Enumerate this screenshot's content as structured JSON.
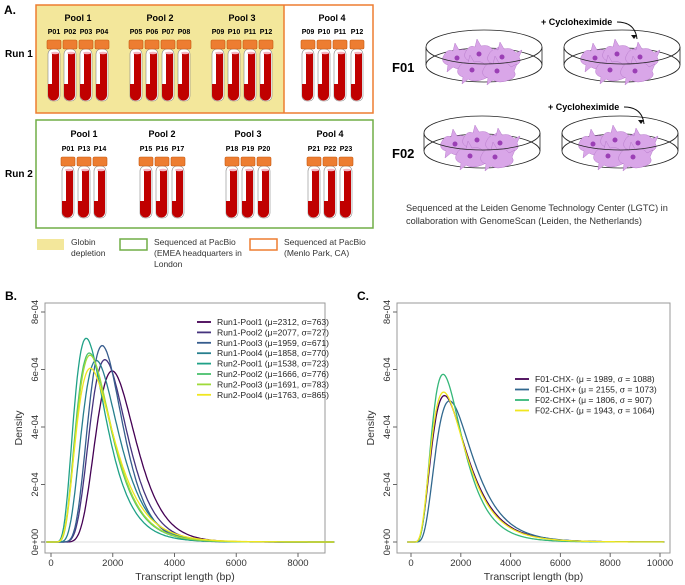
{
  "panel_a": {
    "label": "A.",
    "run1": {
      "label": "Run 1",
      "pools": [
        {
          "label": "Pool 1",
          "tubes": [
            "P01",
            "P02",
            "P03",
            "P04"
          ]
        },
        {
          "label": "Pool 2",
          "tubes": [
            "P05",
            "P06",
            "P07",
            "P08"
          ]
        },
        {
          "label": "Pool 3",
          "tubes": [
            "P09",
            "P10",
            "P11",
            "P12"
          ]
        },
        {
          "label": "Pool 4",
          "tubes": [
            "P09",
            "P10",
            "P11",
            "P12"
          ]
        }
      ]
    },
    "run2": {
      "label": "Run 2",
      "pools": [
        {
          "label": "Pool 1",
          "tubes": [
            "P01",
            "P13",
            "P14"
          ]
        },
        {
          "label": "Pool 2",
          "tubes": [
            "P15",
            "P16",
            "P17"
          ]
        },
        {
          "label": "Pool 3",
          "tubes": [
            "P18",
            "P19",
            "P20"
          ]
        },
        {
          "label": "Pool 4",
          "tubes": [
            "P21",
            "P22",
            "P23"
          ]
        }
      ]
    },
    "legend": [
      {
        "lines": [
          "Globin",
          "depletion"
        ],
        "color": "#F3E79B",
        "style": "fill"
      },
      {
        "lines": [
          "Sequenced at PacBio",
          "(EMEA headquarters in",
          "London"
        ],
        "color": "#70AD47",
        "style": "outline"
      },
      {
        "lines": [
          "Sequenced at PacBio",
          "(Menlo Park, CA)"
        ],
        "color": "#ED7D31",
        "style": "outline"
      }
    ],
    "cells": {
      "rows": [
        "F01",
        "F02"
      ],
      "treatment": "+ Cycloheximide",
      "caption": [
        "Sequenced at the Leiden Genome Technology Center (LGTC) in",
        "collaboration with GenomeScan (Leiden, the Netherlands)"
      ]
    },
    "colors": {
      "globin": "#F3E79B",
      "london": "#70AD47",
      "menlo": "#ED7D31",
      "cap": "#ED7D31",
      "blood": "#C00000",
      "cell": "#D9A6E8",
      "nucleus": "#9B3FB5"
    }
  },
  "chart_data": [
    {
      "panel_label": "B.",
      "type": "line",
      "xlabel": "Transcript length (bp)",
      "ylabel": "Density",
      "xlim": [
        0,
        9000
      ],
      "ylim": [
        0,
        0.0008
      ],
      "xticks": [
        "0",
        "2000",
        "4000",
        "6000",
        "8000"
      ],
      "xtick_values": [
        0,
        2000,
        4000,
        6000,
        8000
      ],
      "yticks": [
        "0e+00",
        "2e-04",
        "4e-04",
        "6e-04",
        "8e-04"
      ],
      "ytick_values": [
        0,
        0.0002,
        0.0004,
        0.0006,
        0.0008
      ],
      "legend_placement": "top-right",
      "series": [
        {
          "name": "Run1-Pool1 (μ=2312, σ=763)",
          "mean": 2312,
          "sd": 763,
          "color": "#440154"
        },
        {
          "name": "Run1-Pool2 (μ=2077, σ=727)",
          "mean": 2077,
          "sd": 727,
          "color": "#46337E"
        },
        {
          "name": "Run1-Pool3 (μ=1959, σ=671)",
          "mean": 1959,
          "sd": 671,
          "color": "#365C8D"
        },
        {
          "name": "Run1-Pool4 (μ=1858, σ=770)",
          "mean": 1858,
          "sd": 770,
          "color": "#277F8E"
        },
        {
          "name": "Run2-Pool1 (μ=1538, σ=723)",
          "mean": 1538,
          "sd": 723,
          "color": "#1FA187"
        },
        {
          "name": "Run2-Pool2 (μ=1666, σ=776)",
          "mean": 1666,
          "sd": 776,
          "color": "#4AC16D"
        },
        {
          "name": "Run2-Pool3 (μ=1691, σ=783)",
          "mean": 1691,
          "sd": 783,
          "color": "#9FDA3A"
        },
        {
          "name": "Run2-Pool4 (μ=1763, σ=865)",
          "mean": 1763,
          "sd": 865,
          "color": "#F0E620"
        }
      ]
    },
    {
      "panel_label": "C.",
      "type": "line",
      "xlabel": "Transcript length (bp)",
      "ylabel": "Density",
      "xlim": [
        0,
        10000
      ],
      "ylim": [
        0,
        0.0008
      ],
      "xticks": [
        "0",
        "2000",
        "4000",
        "6000",
        "8000",
        "10000"
      ],
      "xtick_values": [
        0,
        2000,
        4000,
        6000,
        8000,
        10000
      ],
      "yticks": [
        "0e+00",
        "2e-04",
        "4e-04",
        "6e-04",
        "8e-04"
      ],
      "ytick_values": [
        0,
        0.0002,
        0.0004,
        0.0006,
        0.0008
      ],
      "legend_placement": "right",
      "series": [
        {
          "name": "F01-CHX- (μ = 1989, σ = 1088)",
          "mean": 1989,
          "sd": 1088,
          "color": "#440154"
        },
        {
          "name": "F01-CHX+ (μ = 2155, σ = 1073)",
          "mean": 2155,
          "sd": 1073,
          "color": "#31688E"
        },
        {
          "name": "F02-CHX+ (μ = 1806, σ = 907)",
          "mean": 1806,
          "sd": 907,
          "color": "#35B779"
        },
        {
          "name": "F02-CHX- (μ = 1943, σ = 1064)",
          "mean": 1943,
          "sd": 1064,
          "color": "#F0E620"
        }
      ]
    }
  ]
}
